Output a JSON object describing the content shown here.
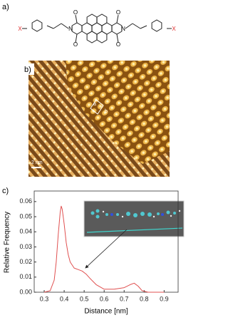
{
  "panel_a": {
    "label": "a)",
    "x_left": "X",
    "x_right": "X",
    "n_left": "N",
    "n_right": "N",
    "oxygens": [
      "O",
      "O",
      "O",
      "O"
    ]
  },
  "panel_b": {
    "label": "b)",
    "scale_bar": "2 nm",
    "axis_a": "a",
    "axis_b": "b"
  },
  "panel_c": {
    "label": "c)"
  },
  "chart_data": {
    "type": "line",
    "xlabel": "Distance [nm]",
    "ylabel": "Relative Frequency",
    "x": [
      0.3,
      0.33,
      0.35,
      0.36,
      0.37,
      0.38,
      0.385,
      0.39,
      0.4,
      0.41,
      0.42,
      0.43,
      0.45,
      0.47,
      0.49,
      0.51,
      0.53,
      0.56,
      0.6,
      0.65,
      0.7,
      0.73,
      0.75,
      0.77,
      0.79,
      0.82,
      0.9
    ],
    "series": [
      {
        "color": "#e05050",
        "values": [
          0,
          0.001,
          0.008,
          0.02,
          0.038,
          0.053,
          0.057,
          0.055,
          0.045,
          0.033,
          0.025,
          0.02,
          0.016,
          0.015,
          0.014,
          0.012,
          0.009,
          0.005,
          0.002,
          0.002,
          0.003,
          0.005,
          0.006,
          0.004,
          0.001,
          0,
          0
        ]
      }
    ],
    "xlim": [
      0.25,
      0.97
    ],
    "ylim": [
      0,
      0.067
    ],
    "xticks": [
      0.3,
      0.4,
      0.5,
      0.6,
      0.7,
      0.8,
      0.9
    ],
    "yticks": [
      {
        "value": 0,
        "label": "0.00"
      },
      0.01,
      0.02,
      0.03,
      0.04,
      0.05,
      0.06
    ]
  }
}
